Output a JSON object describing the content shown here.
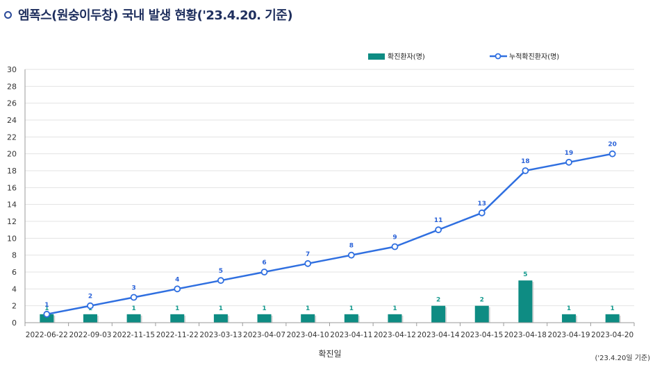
{
  "title": "엠폭스(원숭이두창) 국내 발생 현황('23.4.20. 기준)",
  "colors": {
    "bar": "#0e8c83",
    "line": "#2f6fe0",
    "title": "#1f2f5e",
    "grid": "#e3e3e3"
  },
  "chart_data": {
    "type": "bar+line",
    "categories": [
      "2022-06-22",
      "2022-09-03",
      "2022-11-15",
      "2022-11-22",
      "2023-03-13",
      "2023-04-07",
      "2023-04-10",
      "2023-04-11",
      "2023-04-12",
      "2023-04-14",
      "2023-04-15",
      "2023-04-18",
      "2023-04-19",
      "2023-04-20"
    ],
    "series": [
      {
        "name": "확진환자(명)",
        "type": "bar",
        "values": [
          1,
          1,
          1,
          1,
          1,
          1,
          1,
          1,
          1,
          2,
          2,
          5,
          1,
          1
        ]
      },
      {
        "name": "누적확진환자(명)",
        "type": "line",
        "values": [
          1,
          2,
          3,
          4,
          5,
          6,
          7,
          8,
          9,
          11,
          13,
          18,
          19,
          20
        ]
      }
    ],
    "ylim": [
      0,
      30
    ],
    "yticks": [
      0,
      2,
      4,
      6,
      8,
      10,
      12,
      14,
      16,
      18,
      20,
      22,
      24,
      26,
      28,
      30
    ],
    "xlabel": "확진일",
    "ylabel": "",
    "grid": true,
    "legend": "top-right",
    "note": "('23.4.20일 기준)"
  }
}
